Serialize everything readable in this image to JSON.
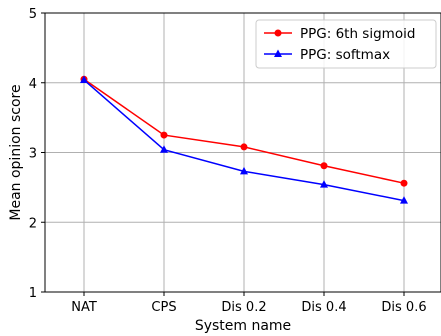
{
  "chart_data": {
    "type": "line",
    "categories": [
      "NAT",
      "CPS",
      "Dis 0.2",
      "Dis 0.4",
      "Dis 0.6"
    ],
    "series": [
      {
        "name": "PPG: 6th sigmoid",
        "values": [
          4.05,
          3.25,
          3.08,
          2.81,
          2.56
        ],
        "color": "#ff0000",
        "marker": "circle"
      },
      {
        "name": "PPG: softmax",
        "values": [
          4.04,
          3.04,
          2.73,
          2.54,
          2.31
        ],
        "color": "#0000ff",
        "marker": "triangle"
      }
    ],
    "xlabel": "System name",
    "ylabel": "Mean opinion score",
    "ylim": [
      1,
      5
    ],
    "yticks": [
      "1",
      "2",
      "3",
      "4",
      "5"
    ],
    "grid": true,
    "legend": "top-right"
  }
}
